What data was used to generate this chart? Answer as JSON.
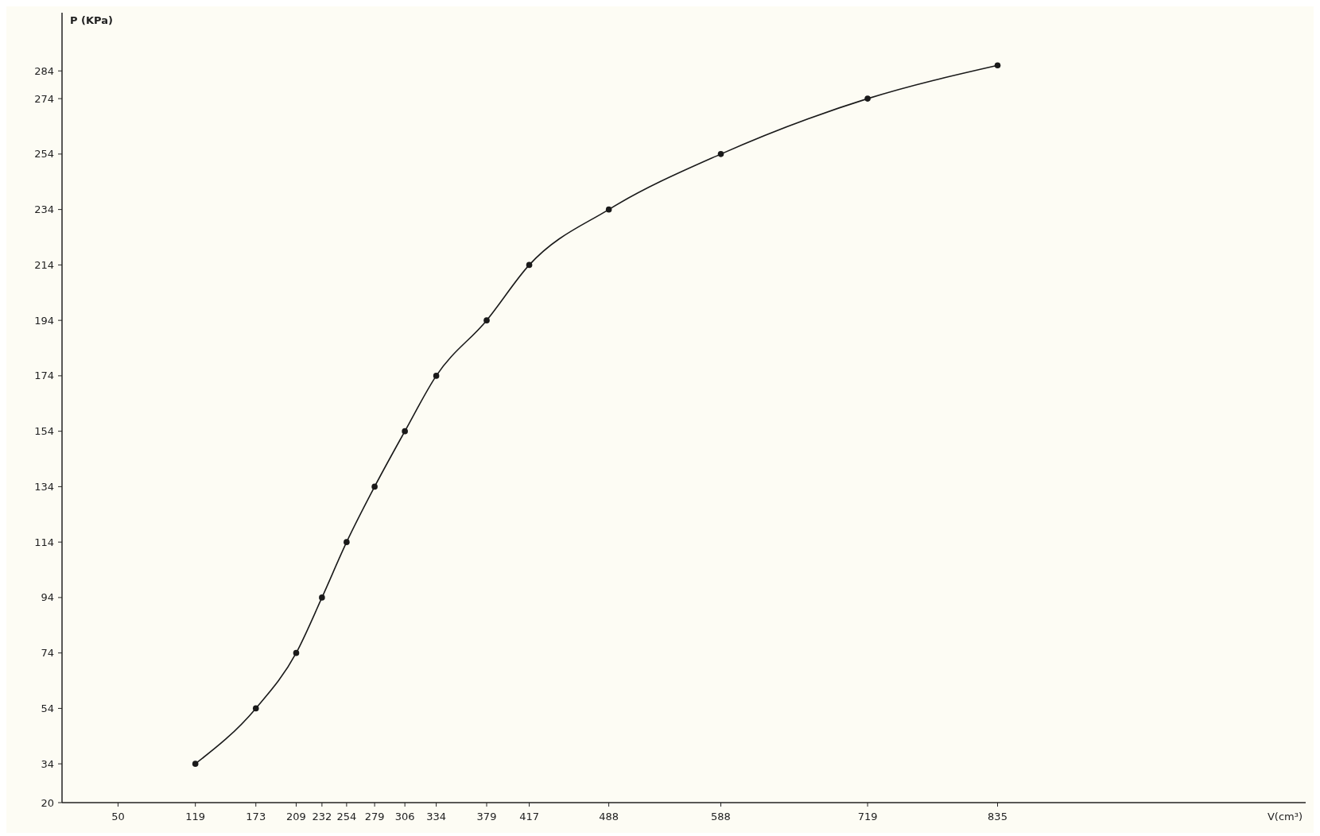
{
  "chart_data": {
    "type": "line",
    "xlabel": "V(cm³)",
    "ylabel": "P (KPa)",
    "x": [
      119,
      173,
      209,
      232,
      254,
      279,
      306,
      334,
      379,
      417,
      488,
      588,
      719,
      835
    ],
    "series": [
      {
        "color": "#1a1a1a",
        "values": [
          34,
          54,
          74,
          94,
          114,
          134,
          154,
          174,
          194,
          214,
          234,
          254,
          274,
          286
        ]
      }
    ],
    "xlim": [
      0,
      1110
    ],
    "xticks": [
      50,
      119,
      173,
      209,
      232,
      254,
      279,
      306,
      334,
      379,
      417,
      488,
      588,
      719,
      835
    ],
    "ylim": [
      20,
      305
    ],
    "yticks": [
      20,
      34,
      54,
      74,
      94,
      114,
      134,
      154,
      174,
      194,
      214,
      234,
      254,
      274,
      284
    ],
    "grid": false,
    "marker": "circle",
    "line_style": "solid"
  }
}
